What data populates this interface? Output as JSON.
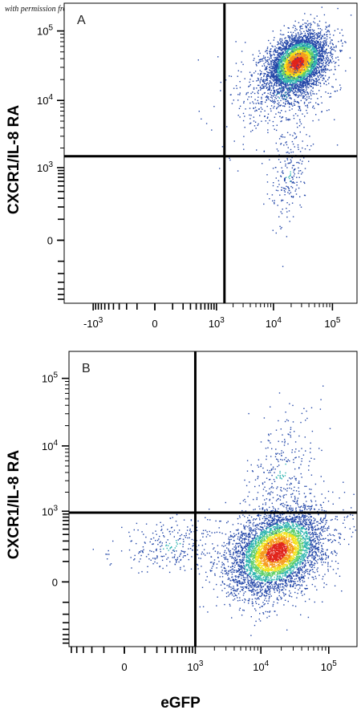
{
  "credit": "with permission from R&D Systems",
  "colors": {
    "low": "#2347a8",
    "mid": "#2fb5b0",
    "high": "#f2e21a",
    "peak": "#e0241b",
    "axis": "#000000"
  },
  "chart_data": [
    {
      "type": "scatter",
      "panel_label": "A",
      "ylabel": "CXCR1/IL-8 RA",
      "xlabel": "",
      "x_scale": "biexponential",
      "y_scale": "biexponential",
      "x_ticks": [
        {
          "value": -1000,
          "base": "-10",
          "exp": "3"
        },
        {
          "value": 0,
          "base": "0",
          "exp": ""
        },
        {
          "value": 1000,
          "base": "10",
          "exp": "3"
        },
        {
          "value": 10000,
          "base": "10",
          "exp": "4"
        },
        {
          "value": 100000,
          "base": "10",
          "exp": "5"
        }
      ],
      "y_ticks": [
        {
          "value": 0,
          "base": "0",
          "exp": ""
        },
        {
          "value": 1000,
          "base": "10",
          "exp": "3"
        },
        {
          "value": 10000,
          "base": "10",
          "exp": "4"
        },
        {
          "value": 100000,
          "base": "10",
          "exp": "5"
        }
      ],
      "quadrant_gate": {
        "x": 1400,
        "y": 1500
      },
      "populations": [
        {
          "name": "",
          "center": [
            25000,
            35000
          ],
          "spread": [
            0.25,
            0.2
          ],
          "share": 0.86
        },
        {
          "name": "",
          "center": [
            15000,
            15000
          ],
          "spread": [
            0.45,
            0.4
          ],
          "share": 0.1
        },
        {
          "name": "",
          "center": [
            18000,
            800
          ],
          "spread": [
            0.15,
            0.35
          ],
          "share": 0.04
        }
      ]
    },
    {
      "type": "scatter",
      "panel_label": "B",
      "ylabel": "CXCR1/IL-8 RA",
      "xlabel": "eGFP",
      "x_scale": "biexponential",
      "y_scale": "biexponential",
      "x_ticks": [
        {
          "value": 0,
          "base": "0",
          "exp": ""
        },
        {
          "value": 1000,
          "base": "10",
          "exp": "3"
        },
        {
          "value": 10000,
          "base": "10",
          "exp": "4"
        },
        {
          "value": 100000,
          "base": "10",
          "exp": "5"
        }
      ],
      "y_ticks": [
        {
          "value": 0,
          "base": "0",
          "exp": ""
        },
        {
          "value": 1000,
          "base": "10",
          "exp": "3"
        },
        {
          "value": 10000,
          "base": "10",
          "exp": "4"
        },
        {
          "value": 100000,
          "base": "10",
          "exp": "5"
        }
      ],
      "quadrant_gate": {
        "x": 1000,
        "y": 950
      },
      "populations": [
        {
          "name": "",
          "center": [
            17000,
            180
          ],
          "spread": [
            0.35,
            0.3
          ],
          "share": 0.9
        },
        {
          "name": "",
          "center": [
            20000,
            4000
          ],
          "spread": [
            0.25,
            0.4
          ],
          "share": 0.05
        },
        {
          "name": "",
          "center": [
            400,
            250
          ],
          "spread": [
            0.4,
            0.2
          ],
          "share": 0.05
        }
      ]
    }
  ]
}
